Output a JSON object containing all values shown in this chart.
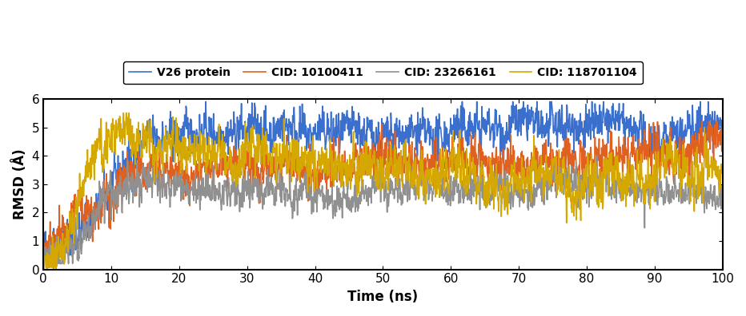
{
  "title": "",
  "xlabel": "Time (ns)",
  "ylabel": "RMSD (Å)",
  "xlim": [
    0,
    100
  ],
  "ylim": [
    0,
    6
  ],
  "xticks": [
    0,
    10,
    20,
    30,
    40,
    50,
    60,
    70,
    80,
    90,
    100
  ],
  "yticks": [
    0,
    1,
    2,
    3,
    4,
    5,
    6
  ],
  "legend_entries": [
    "V26 protein",
    "CID: 10100411",
    "CID: 23266161",
    "CID: 118701104"
  ],
  "line_colors": [
    "#3a6fce",
    "#e06020",
    "#909090",
    "#d4a800"
  ],
  "line_width": 1.2,
  "figsize": [
    9.32,
    3.96
  ],
  "dpi": 100,
  "seed": 42,
  "n_points": 2000,
  "background_color": "#ffffff",
  "legend_fontsize": 10,
  "axis_label_fontsize": 12,
  "tick_fontsize": 11
}
